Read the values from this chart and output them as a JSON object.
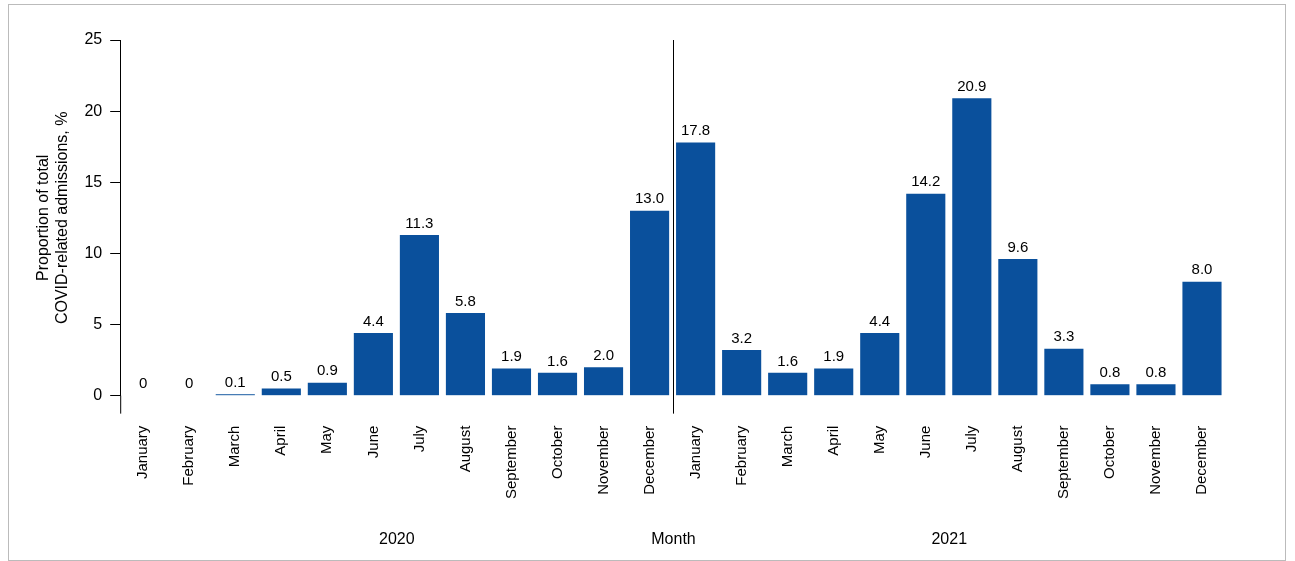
{
  "chart_data": {
    "type": "bar",
    "xlabel": "Month",
    "ylabel": "Proportion of total\nCOVID-related admissions, %",
    "categories": [
      "January",
      "February",
      "March",
      "April",
      "May",
      "June",
      "July",
      "August",
      "September",
      "October",
      "November",
      "December",
      "January",
      "February",
      "March",
      "April",
      "May",
      "June",
      "July",
      "August",
      "September",
      "October",
      "November",
      "December"
    ],
    "values": [
      0,
      0,
      0.1,
      0.5,
      0.9,
      4.4,
      11.3,
      5.8,
      1.9,
      1.6,
      2.0,
      13.0,
      17.8,
      3.2,
      1.6,
      1.9,
      4.4,
      14.2,
      20.9,
      9.6,
      3.3,
      0.8,
      0.8,
      8.0
    ],
    "value_labels": [
      "0",
      "0",
      "0.1",
      "0.5",
      "0.9",
      "4.4",
      "11.3",
      "5.8",
      "1.9",
      "1.6",
      "2.0",
      "13.0",
      "17.8",
      "3.2",
      "1.6",
      "1.9",
      "4.4",
      "14.2",
      "20.9",
      "9.6",
      "3.3",
      "0.8",
      "0.8",
      "8.0"
    ],
    "color": "#0a509c",
    "ylim": [
      0,
      25
    ],
    "yticks": [
      0,
      5,
      10,
      15,
      20,
      25
    ],
    "annotations": [
      "2020",
      "2021"
    ],
    "grid": false,
    "legend": false
  }
}
